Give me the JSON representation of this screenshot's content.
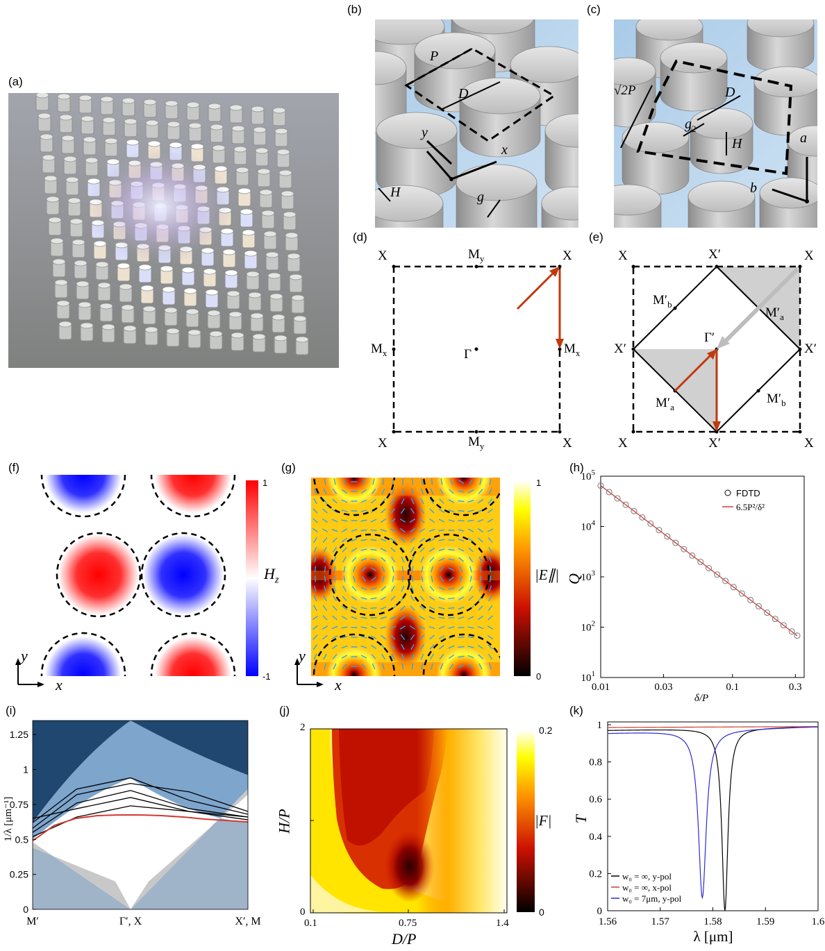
{
  "panels": {
    "a": {
      "label": "(a)"
    },
    "b": {
      "label": "(b)",
      "labels": {
        "P": "P",
        "D": "D",
        "y": "y",
        "x": "x",
        "H": "H",
        "g": "g"
      }
    },
    "c": {
      "label": "(c)",
      "labels": {
        "sqrt2P": "√2P",
        "D": "D",
        "g2": "g",
        "g2sub": "2",
        "H": "H",
        "a": "a",
        "b": "b"
      }
    },
    "d": {
      "label": "(d)",
      "points": {
        "X": "X",
        "My": "M",
        "Mx": "M",
        "ysub": "y",
        "xsub": "x",
        "Gamma": "Γ"
      }
    },
    "e": {
      "label": "(e)",
      "points": {
        "X": "X",
        "Xp": "X′",
        "Mb": "M′",
        "Ma": "M′",
        "bsub": "b",
        "asub": "a",
        "Gammap": "Γ′"
      }
    },
    "f": {
      "label": "(f)",
      "colorbar_label": "H",
      "colorbar_sub": "z",
      "colorbar_max": "1",
      "colorbar_min": "-1",
      "axis_y": "y",
      "axis_x": "x"
    },
    "g": {
      "label": "(g)",
      "colorbar_label": "|E∥|",
      "colorbar_max": "1",
      "colorbar_min": "0",
      "axis_y": "y",
      "axis_x": "x"
    },
    "h": {
      "label": "(h)"
    },
    "i": {
      "label": "(i)"
    },
    "j": {
      "label": "(j)",
      "colorbar_label": "|F|",
      "colorbar_max": "0.2",
      "colorbar_min": "0",
      "xlabel": "D/P",
      "ylabel": "H/P",
      "xticks": [
        "0.1",
        "0.75",
        "1.4"
      ],
      "yticks": [
        "2",
        "1",
        "0"
      ]
    },
    "k": {
      "label": "(k)"
    }
  },
  "colors": {
    "arrow_red": "#c0390f",
    "band_dark": "#1f4770",
    "band_mid": "#7ea5cc",
    "band_light": "#9fb3c9",
    "cone_gray": "#c8c8c8",
    "plot_red": "#d23a33",
    "plot_blue": "#2a2ad8"
  },
  "chart_data": [
    {
      "panel": "h",
      "type": "scatter",
      "xlabel": "δ/P",
      "ylabel": "Q",
      "xscale": "log",
      "yscale": "log",
      "xlim": [
        0.01,
        0.35
      ],
      "ylim": [
        10,
        100000
      ],
      "xticks": [
        "0.01",
        "0.03",
        "0.1",
        "0.3"
      ],
      "yticks": [
        "10^5",
        "10^4",
        "10^3",
        "10^2",
        "10^1"
      ],
      "series": [
        {
          "name": "FDTD",
          "marker": "circle",
          "x": [
            0.01,
            0.0116,
            0.0134,
            0.0155,
            0.0179,
            0.0207,
            0.0239,
            0.0277,
            0.032,
            0.037,
            0.0428,
            0.0495,
            0.0572,
            0.0661,
            0.0765,
            0.0884,
            0.102,
            0.118,
            0.137,
            0.158,
            0.183,
            0.211,
            0.244,
            0.282,
            0.31
          ],
          "y": [
            65000,
            48300,
            36200,
            27100,
            20300,
            15200,
            11400,
            8500,
            6350,
            4750,
            3550,
            2650,
            1990,
            1490,
            1110,
            830,
            625,
            467,
            346,
            260,
            194,
            146,
            109,
            82,
            68
          ]
        },
        {
          "name": "6.5P²/δ²",
          "type": "line",
          "x": [
            0.01,
            0.31
          ],
          "y": [
            65000,
            67.6
          ]
        }
      ]
    },
    {
      "panel": "i",
      "type": "line",
      "ylabel": "1/λ [μm⁻¹]",
      "ylim": [
        0,
        1.35
      ],
      "yticks": [
        "0",
        "0.25",
        "0.5",
        "0.75",
        "1",
        "1.25"
      ],
      "xticks": [
        "M′",
        "Γ′, X",
        "X′, M"
      ],
      "series": [
        {
          "name": "",
          "color": "red",
          "x": [
            0,
            0.1,
            0.2,
            0.3,
            0.4,
            0.5,
            0.6,
            0.7,
            0.8,
            0.9,
            1.0
          ],
          "y": [
            0.49,
            0.6,
            0.65,
            0.67,
            0.675,
            0.675,
            0.67,
            0.66,
            0.645,
            0.635,
            0.625
          ]
        }
      ]
    },
    {
      "panel": "k",
      "type": "line",
      "xlabel": "λ [μm]",
      "ylabel": "T",
      "xlim": [
        1.56,
        1.6
      ],
      "ylim": [
        0,
        1
      ],
      "xticks": [
        "1.56",
        "1.57",
        "1.58",
        "1.59",
        "1.6"
      ],
      "yticks": [
        "0",
        "0.2",
        "0.4",
        "0.6",
        "0.8",
        "1"
      ],
      "series": [
        {
          "name": "w₀ = ∞, y-pol",
          "color": "black",
          "resonance": 1.5823,
          "min": 0.0,
          "baseline_left": 0.97,
          "baseline_right": 0.99
        },
        {
          "name": "w₀ = ∞, x-pol",
          "color": "red",
          "baseline_left": 0.985,
          "baseline_right": 0.99
        },
        {
          "name": "w₀ = 7μm, y-pol",
          "color": "blue",
          "resonance": 1.578,
          "min": 0.07,
          "baseline_left": 0.955,
          "baseline_right": 0.99
        }
      ]
    }
  ]
}
